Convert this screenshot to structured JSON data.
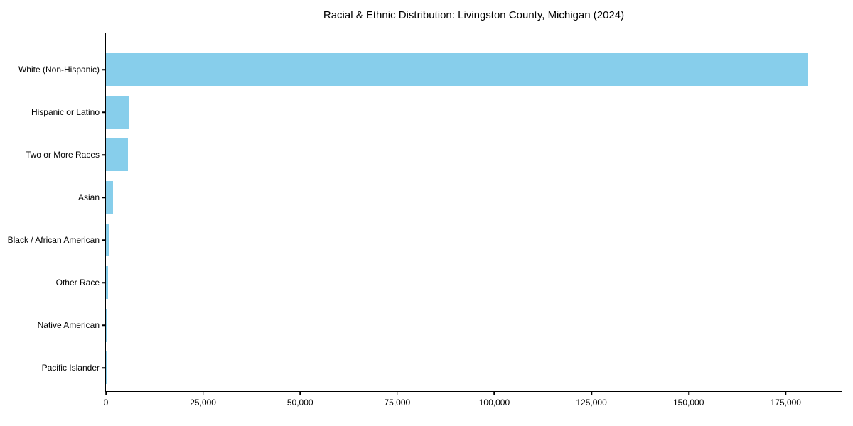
{
  "chart_data": {
    "type": "bar",
    "orientation": "horizontal",
    "title": "Racial & Ethnic Distribution: Livingston County, Michigan (2024)",
    "categories": [
      "White (Non-Hispanic)",
      "Hispanic or Latino",
      "Two or More Races",
      "Asian",
      "Black / African American",
      "Other Race",
      "Native American",
      "Pacific Islander"
    ],
    "values": [
      180700,
      6000,
      5600,
      1900,
      1000,
      620,
      260,
      40
    ],
    "bar_color": "#87CEEB",
    "xlabel": "",
    "ylabel": "",
    "xlim": [
      0,
      189400
    ],
    "x_ticks": [
      0,
      25000,
      50000,
      75000,
      100000,
      125000,
      150000,
      175000
    ],
    "x_tick_labels": [
      "0",
      "25,000",
      "50,000",
      "75,000",
      "100,000",
      "125,000",
      "150,000",
      "175,000"
    ],
    "grid": false,
    "legend": "none"
  }
}
